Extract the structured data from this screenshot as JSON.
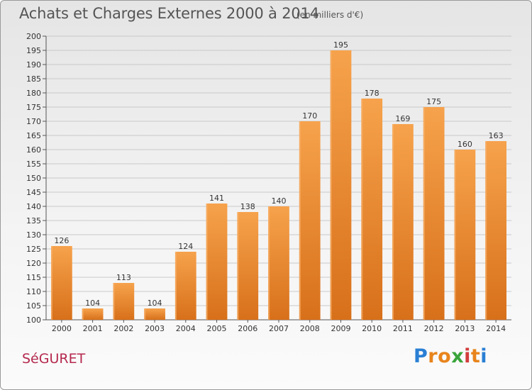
{
  "header": {
    "title": "Achats et Charges Externes 2000 à 2014",
    "subtitle": "(en milliers d'€)"
  },
  "footer": {
    "city": "SéGURET",
    "logo_letters": [
      "P",
      "r",
      "o",
      "x",
      "i",
      "t",
      "i"
    ],
    "logo_colors": [
      "#2a7fd4",
      "#e8841c",
      "#e8841c",
      "#3aa43a",
      "#d23c3c",
      "#e8841c",
      "#2a7fd4"
    ]
  },
  "chart_data": {
    "type": "bar",
    "title": "Achats et Charges Externes 2000 à 2014",
    "subtitle": "(en milliers d'€)",
    "xlabel": "",
    "ylabel": "",
    "categories": [
      "2000",
      "2001",
      "2002",
      "2003",
      "2004",
      "2005",
      "2006",
      "2007",
      "2008",
      "2009",
      "2010",
      "2011",
      "2012",
      "2013",
      "2014"
    ],
    "values": [
      126,
      104,
      113,
      104,
      124,
      141,
      138,
      140,
      170,
      195,
      178,
      169,
      175,
      160,
      163
    ],
    "ylim": [
      100,
      200
    ],
    "ytick_step": 5,
    "grid": true,
    "bar_color": "#f0963a",
    "bar_color_dark": "#d8701a"
  }
}
